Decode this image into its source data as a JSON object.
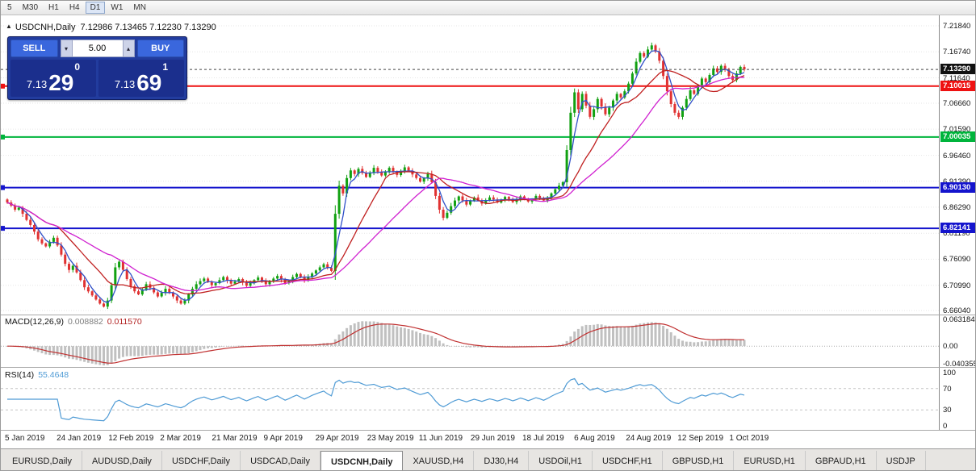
{
  "toolbar": {
    "timeframes": [
      "5",
      "M30",
      "H1",
      "H4",
      "D1",
      "W1",
      "MN"
    ],
    "active": "D1"
  },
  "icons": {
    "panel_collapse": "▲",
    "spin_up": "▴",
    "spin_down": "▾"
  },
  "header": {
    "symbol_period": "USDCNH,Daily",
    "ohlc_text": "7.12986 7.13465 7.12230 7.13290"
  },
  "trade_panel": {
    "sell_label": "SELL",
    "buy_label": "BUY",
    "volume": "5.00",
    "bid": {
      "big": "7.13",
      "pips": "29",
      "frac": "0"
    },
    "ask": {
      "big": "7.13",
      "pips": "69",
      "frac": "1"
    }
  },
  "tabs": {
    "items": [
      "EURUSD,Daily",
      "AUDUSD,Daily",
      "USDCHF,Daily",
      "USDCAD,Daily",
      "USDCNH,Daily",
      "XAUUSD,H4",
      "DJ30,H4",
      "USDOil,H1",
      "USDCHF,H1",
      "GBPUSD,H1",
      "EURUSD,H1",
      "GBPAUD,H1",
      "USDJP"
    ],
    "active_index": 4
  },
  "chart_data": {
    "type": "candlestick",
    "symbol": "USDCNH",
    "timeframe": "Daily",
    "ohlc": {
      "open": 7.12986,
      "high": 7.13465,
      "low": 7.1223,
      "close": 7.1329
    },
    "y_axis": {
      "top": 7.2184,
      "bottom": 6.6604,
      "tick_labels": [
        "7.21840",
        "7.16740",
        "7.11640",
        "7.06660",
        "7.01590",
        "6.96460",
        "6.91390",
        "6.86290",
        "6.81190",
        "6.76090",
        "6.70990",
        "6.66040"
      ]
    },
    "x_tick_labels": [
      "5 Jan 2019",
      "24 Jan 2019",
      "12 Feb 2019",
      "2 Mar 2019",
      "21 Mar 2019",
      "9 Apr 2019",
      "29 Apr 2019",
      "23 May 2019",
      "11 Jun 2019",
      "29 Jun 2019",
      "18 Jul 2019",
      "6 Aug 2019",
      "24 Aug 2019",
      "12 Sep 2019",
      "1 Oct 2019"
    ],
    "first_open": 6.878,
    "closes": [
      6.872,
      6.866,
      6.858,
      6.862,
      6.85,
      6.838,
      6.828,
      6.815,
      6.8,
      6.792,
      6.786,
      6.795,
      6.803,
      6.788,
      6.77,
      6.752,
      6.74,
      6.748,
      6.735,
      6.72,
      6.706,
      6.698,
      6.69,
      6.682,
      6.674,
      6.668,
      6.68,
      6.71,
      6.745,
      6.756,
      6.74,
      6.722,
      6.708,
      6.698,
      6.692,
      6.702,
      6.712,
      6.705,
      6.696,
      6.688,
      6.695,
      6.703,
      6.696,
      6.688,
      6.68,
      6.674,
      6.68,
      6.692,
      6.703,
      6.712,
      6.718,
      6.723,
      6.716,
      6.71,
      6.714,
      6.72,
      6.726,
      6.719,
      6.713,
      6.717,
      6.722,
      6.715,
      6.709,
      6.714,
      6.72,
      6.725,
      6.718,
      6.712,
      6.717,
      6.723,
      6.728,
      6.721,
      6.714,
      6.719,
      6.726,
      6.732,
      6.726,
      6.72,
      6.726,
      6.733,
      6.739,
      6.745,
      6.751,
      6.744,
      6.738,
      6.85,
      6.905,
      6.89,
      6.92,
      6.935,
      6.928,
      6.938,
      6.93,
      6.922,
      6.93,
      6.94,
      6.932,
      6.925,
      6.932,
      6.94,
      6.933,
      6.926,
      6.934,
      6.941,
      6.934,
      6.927,
      6.92,
      6.913,
      6.92,
      6.928,
      6.912,
      6.885,
      6.858,
      6.842,
      6.852,
      6.865,
      6.876,
      6.884,
      6.876,
      6.868,
      6.875,
      6.882,
      6.876,
      6.87,
      6.876,
      6.882,
      6.878,
      6.872,
      6.877,
      6.883,
      6.879,
      6.873,
      6.878,
      6.884,
      6.88,
      6.874,
      6.879,
      6.885,
      6.881,
      6.876,
      6.882,
      6.89,
      6.898,
      6.905,
      6.912,
      6.975,
      7.048,
      7.088,
      7.055,
      7.085,
      7.062,
      7.04,
      7.055,
      7.075,
      7.06,
      7.045,
      7.058,
      7.072,
      7.085,
      7.078,
      7.09,
      7.105,
      7.125,
      7.148,
      7.165,
      7.158,
      7.172,
      7.18,
      7.168,
      7.15,
      7.12,
      7.09,
      7.065,
      7.048,
      7.04,
      7.058,
      7.075,
      7.092,
      7.085,
      7.1,
      7.115,
      7.108,
      7.122,
      7.135,
      7.128,
      7.14,
      7.132,
      7.12,
      7.112,
      7.125,
      7.138,
      7.1329
    ],
    "up_color": "#11a111",
    "down_color": "#e03232",
    "moving_averages": [
      {
        "period": 4,
        "color": "#3050c8"
      },
      {
        "period": 14,
        "color": "#c02020"
      },
      {
        "period": 28,
        "color": "#d020d0"
      }
    ],
    "levels": [
      {
        "price": 7.10015,
        "label": "7.10015",
        "color": "#ee1111"
      },
      {
        "price": 7.00035,
        "label": "7.00035",
        "color": "#00b43c"
      },
      {
        "price": 6.9013,
        "label": "6.90130",
        "color": "#1414cd"
      },
      {
        "price": 6.82141,
        "label": "6.82141",
        "color": "#1414cd"
      }
    ],
    "current_price": {
      "value": 7.1329,
      "label": "7.13290",
      "color": "#111111"
    },
    "macd": {
      "label": "MACD(12,26,9)",
      "fast": 12,
      "slow": 26,
      "signal": 9,
      "value_main": "0.008882",
      "value_signal": "0.011570",
      "scale_top": 0.063184,
      "scale_bottom": -0.040355,
      "axis_labels": [
        {
          "v": 0.063184,
          "label": "0.063184"
        },
        {
          "v": 0,
          "label": "0.00"
        },
        {
          "v": -0.040355,
          "label": "-0.040355"
        }
      ],
      "hist_color": "#c0c0c0",
      "signal_color": "#c03030"
    },
    "rsi": {
      "label": "RSI(14)",
      "period": 14,
      "value": "55.4648",
      "color": "#4f9bd5",
      "axis_labels": [
        {
          "v": 100,
          "label": "100"
        },
        {
          "v": 70,
          "label": "70"
        },
        {
          "v": 30,
          "label": "30"
        },
        {
          "v": 0,
          "label": "0"
        }
      ],
      "guide_levels": [
        70,
        30
      ]
    }
  }
}
